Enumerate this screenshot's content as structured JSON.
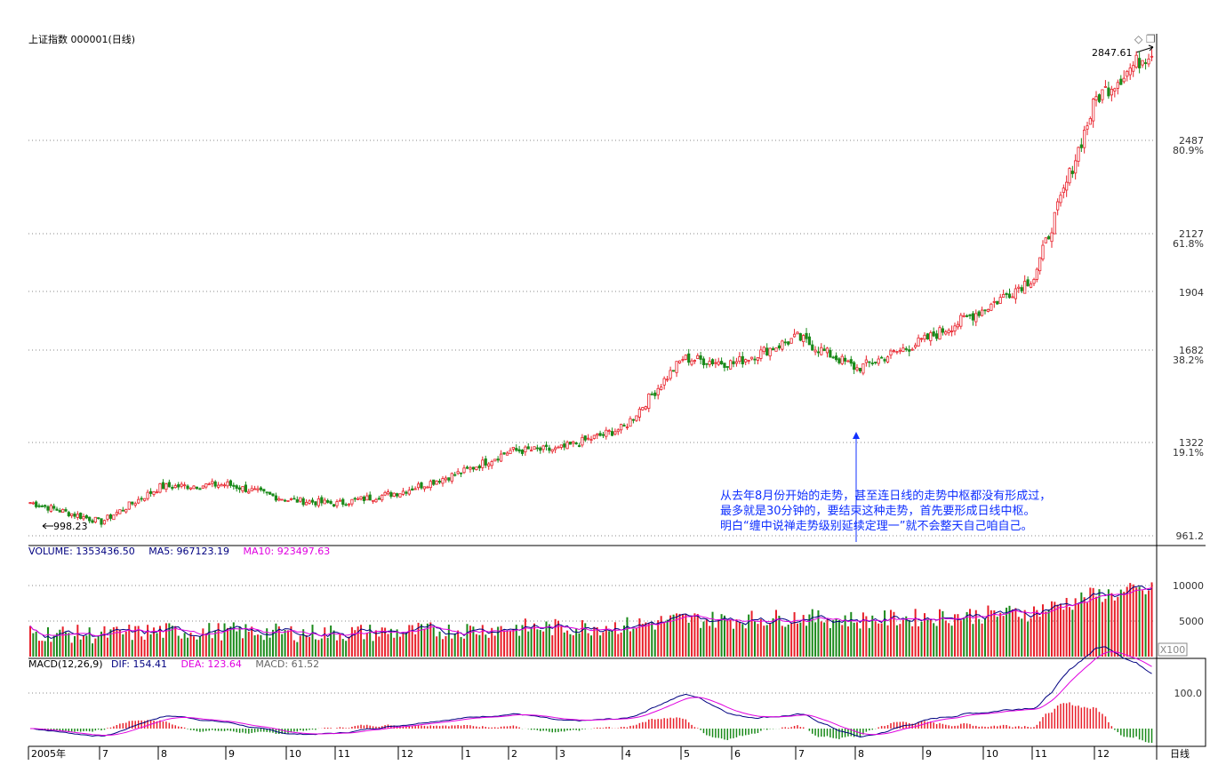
{
  "title": "上证指数 000001(日线)",
  "icons": {
    "diamond": "◇",
    "window": "❐"
  },
  "colors": {
    "up": "#e8202a",
    "down": "#1a8a1a",
    "grid": "#8c8c8c",
    "ma5": "#000080",
    "ma10": "#e000e0",
    "note": "#1030ff",
    "vol_text": "#000080"
  },
  "price_axis": {
    "ticks": [
      "2487",
      "2127",
      "1904",
      "1682",
      "1322",
      "961.2"
    ],
    "pct": [
      "80.9%",
      "61.8%",
      "38.2%",
      "19.1%"
    ],
    "high_label": "2847.61",
    "low_label": "998.23"
  },
  "annotation": [
    "从去年8月份开始的走势，甚至连日线的走势中枢都没有形成过，",
    "最多就是30分钟的，要结束这种走势，首先要形成日线中枢。",
    "明白“缠中说禅走势级别延续定理一”就不会整天自己咱自己。"
  ],
  "volume": {
    "label": "VOLUME:",
    "value": "1353436.50",
    "ma5_label": "MA5:",
    "ma5": "967123.19",
    "ma10_label": "MA10:",
    "ma10": "923497.63",
    "ticks": [
      "10000",
      "5000"
    ],
    "unit": "X100"
  },
  "macd": {
    "label": "MACD(12,26,9)",
    "dif_label": "DIF:",
    "dif": "154.41",
    "dea_label": "DEA:",
    "dea": "123.64",
    "macd_label": "MACD:",
    "macd": "61.52",
    "tick": "100.0"
  },
  "x_axis": {
    "labels": [
      "2005年",
      "7",
      "8",
      "9",
      "10",
      "11",
      "12",
      "1",
      "2",
      "3",
      "4",
      "5",
      "6",
      "7",
      "8",
      "9",
      "10",
      "11",
      "12"
    ],
    "period": "日线"
  },
  "chart_data": {
    "type": "candlestick",
    "title": "上证指数 000001(日线)",
    "price_range": [
      961.2,
      2847.61
    ],
    "price_keypoints": [
      {
        "month": "2005年",
        "close": 1090
      },
      {
        "month": "7",
        "close": 1015
      },
      {
        "month": "8",
        "close": 1150
      },
      {
        "month": "9",
        "close": 1160
      },
      {
        "month": "10",
        "close": 1100
      },
      {
        "month": "11",
        "close": 1085
      },
      {
        "month": "12",
        "close": 1130
      },
      {
        "month": "1",
        "close": 1210
      },
      {
        "month": "2",
        "close": 1290
      },
      {
        "month": "3",
        "close": 1295
      },
      {
        "month": "4",
        "close": 1380
      },
      {
        "month": "5",
        "close": 1650
      },
      {
        "month": "6",
        "close": 1630
      },
      {
        "month": "7",
        "close": 1730
      },
      {
        "month": "8",
        "close": 1610
      },
      {
        "month": "9",
        "close": 1720
      },
      {
        "month": "10",
        "close": 1840
      },
      {
        "month": "11",
        "close": 1960
      },
      {
        "month": "12",
        "close": 2650
      }
    ],
    "high": 2847.61,
    "low": 998.23,
    "volume_ticks": [
      10000,
      5000
    ],
    "volume_latest": 1353436.5,
    "ma5": 967123.19,
    "ma10": 923497.63,
    "macd": {
      "dif": 154.41,
      "dea": 123.64,
      "macd": 61.52
    },
    "series": [
      {
        "name": "MA5"
      },
      {
        "name": "MA10"
      },
      {
        "name": "DIF"
      },
      {
        "name": "DEA"
      }
    ]
  }
}
